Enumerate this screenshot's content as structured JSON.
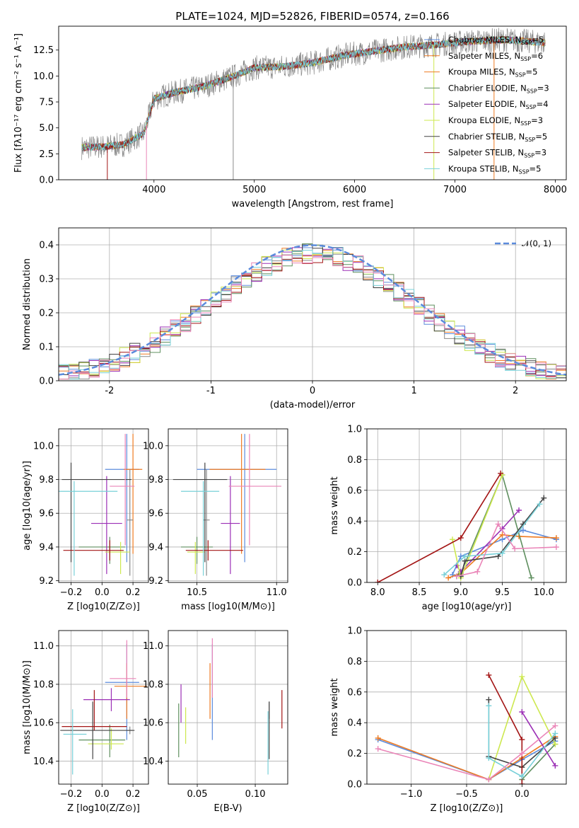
{
  "palette": [
    "#5b8bdc",
    "#ef7b22",
    "#8a8a8a",
    "#5f8f5f",
    "#9b2fb5",
    "#cde84f",
    "#444444",
    "#a31515",
    "#78d0d8",
    "#ea85b8"
  ],
  "chart_data": [
    {
      "id": "spectrum",
      "type": "line",
      "title": "PLATE=1024, MJD=52826, FIBERID=0574, z=0.166",
      "xlabel": "wavelength [Angstrom, rest frame]",
      "ylabel": "Flux [fλ10⁻¹⁷ erg cm⁻² s⁻¹ A⁻¹]",
      "xlim": [
        3050,
        8110
      ],
      "ylim": [
        0,
        14.8
      ],
      "xticks": [
        4000,
        5000,
        6000,
        7000,
        8000
      ],
      "yticks": [
        0.0,
        2.5,
        5.0,
        7.5,
        10.0,
        12.5
      ],
      "ytick_labels": [
        "0.0",
        "2.5",
        "5.0",
        "7.5",
        "10.0",
        "12.5"
      ],
      "grid": false,
      "legend_placement": "upper right",
      "continuum": [
        [
          3280,
          3.1
        ],
        [
          3500,
          3.2
        ],
        [
          3700,
          3.4
        ],
        [
          3900,
          4.5
        ],
        [
          4000,
          7.8
        ],
        [
          4200,
          8.4
        ],
        [
          4500,
          9.0
        ],
        [
          4800,
          10.0
        ],
        [
          5000,
          10.8
        ],
        [
          5300,
          10.9
        ],
        [
          5600,
          11.3
        ],
        [
          5900,
          12.0
        ],
        [
          6200,
          12.4
        ],
        [
          6500,
          12.8
        ],
        [
          6800,
          13.0
        ],
        [
          7100,
          13.3
        ],
        [
          7500,
          13.5
        ],
        [
          7900,
          13.2
        ]
      ],
      "vertical_spikes": [
        3535,
        3925,
        4790,
        6790,
        7390
      ],
      "series": [
        {
          "name": "Chabrier MILES, N_SSP=5"
        },
        {
          "name": "Salpeter MILES, N_SSP=6"
        },
        {
          "name": "Kroupa MILES, N_SSP=5"
        },
        {
          "name": "Chabrier ELODIE, N_SSP=3"
        },
        {
          "name": "Salpeter ELODIE, N_SSP=4"
        },
        {
          "name": "Kroupa ELODIE, N_SSP=3"
        },
        {
          "name": "Chabrier STELIB, N_SSP=5"
        },
        {
          "name": "Salpeter STELIB, N_SSP=3"
        },
        {
          "name": "Kroupa STELIB, N_SSP=5"
        }
      ]
    },
    {
      "id": "residuals",
      "type": "histogram",
      "xlabel": "(data-model)/error",
      "ylabel": "Normed distribution",
      "xlim": [
        -2.5,
        2.5
      ],
      "ylim": [
        0,
        0.45
      ],
      "xticks": [
        -2,
        -1,
        0,
        1,
        2
      ],
      "yticks": [
        0.0,
        0.1,
        0.2,
        0.3,
        0.4
      ],
      "ytick_labels": [
        "0.0",
        "0.1",
        "0.2",
        "0.3",
        "0.4"
      ],
      "grid": true,
      "bins": {
        "start": -2.5,
        "width": 0.1,
        "count": 50
      },
      "reference": {
        "name": "𝒩(0, 1)",
        "mean": 0,
        "sigma": 1
      },
      "legend_placement": "upper right"
    },
    {
      "id": "age-vs-Z",
      "type": "errorbar",
      "xlabel": "Z [log10(Z/Z⊙)]",
      "ylabel": "age [log10(age/yr)]",
      "xlim": [
        -0.28,
        0.3
      ],
      "ylim": [
        9.19,
        10.1
      ],
      "xticks": [
        -0.2,
        0.0,
        0.2
      ],
      "xtick_labels": [
        "−0.2",
        "0.0",
        "0.2"
      ],
      "yticks": [
        9.2,
        9.4,
        9.6,
        9.8,
        10.0
      ],
      "ytick_labels": [
        "9.2",
        "9.4",
        "9.6",
        "9.8",
        "10.0"
      ],
      "grid": true,
      "points": [
        {
          "x": 0.16,
          "xerr": [
            0.14,
            0.08
          ],
          "y": 9.86,
          "yerr": [
            0.55,
            0.21
          ],
          "c": 0
        },
        {
          "x": 0.2,
          "xerr": [
            0.06,
            0.06
          ],
          "y": 9.86,
          "yerr": [
            0.5,
            0.21
          ],
          "c": 1
        },
        {
          "x": 0.18,
          "xerr": [
            0.02,
            0.02
          ],
          "y": 9.56,
          "yerr": [
            0.33,
            0.3
          ],
          "c": 2
        },
        {
          "x": 0.05,
          "xerr": [
            0.2,
            0.1
          ],
          "y": 9.4,
          "yerr": [
            0.1,
            0.06
          ],
          "c": 3
        },
        {
          "x": 0.03,
          "xerr": [
            0.1,
            0.1
          ],
          "y": 9.54,
          "yerr": [
            0.3,
            0.28
          ],
          "c": 4
        },
        {
          "x": 0.12,
          "xerr": [
            0.1,
            0.06
          ],
          "y": 9.37,
          "yerr": [
            0.13,
            0.06
          ],
          "c": 5
        },
        {
          "x": -0.2,
          "xerr": [
            0.06,
            0.39
          ],
          "y": 9.8,
          "yerr": [
            0.49,
            0.1
          ],
          "c": 6
        },
        {
          "x": 0.05,
          "xerr": [
            0.3,
            0.09
          ],
          "y": 9.38,
          "yerr": [
            0.06,
            0.06
          ],
          "c": 7
        },
        {
          "x": -0.18,
          "xerr": [
            0.11,
            0.28
          ],
          "y": 9.73,
          "yerr": [
            0.5,
            0.06
          ],
          "c": 8
        },
        {
          "x": 0.15,
          "xerr": [
            0.1,
            0.06
          ],
          "y": 9.76,
          "yerr": [
            0.35,
            0.31
          ],
          "c": 9
        }
      ]
    },
    {
      "id": "age-vs-mass",
      "type": "errorbar",
      "xlabel": "mass [log10(M/M⊙)]",
      "ylabel": "",
      "xlim": [
        10.32,
        11.07
      ],
      "ylim": [
        9.19,
        10.1
      ],
      "xticks": [
        10.5,
        11.0
      ],
      "xtick_labels": [
        "10.5",
        "11.0"
      ],
      "yticks": [
        9.2,
        9.4,
        9.6,
        9.8,
        10.0
      ],
      "ytick_labels": [
        "9.2",
        "9.4",
        "9.6",
        "9.8",
        "10.0"
      ],
      "grid": true,
      "points": [
        {
          "x": 10.8,
          "xerr": [
            0.3,
            0.2
          ],
          "y": 9.86,
          "yerr": [
            0.55,
            0.21
          ],
          "c": 0
        },
        {
          "x": 10.78,
          "xerr": [
            0.2,
            0.15
          ],
          "y": 9.86,
          "yerr": [
            0.5,
            0.21
          ],
          "c": 1
        },
        {
          "x": 10.56,
          "xerr": [
            0.02,
            0.02
          ],
          "y": 9.56,
          "yerr": [
            0.33,
            0.3
          ],
          "c": 2
        },
        {
          "x": 10.5,
          "xerr": [
            0.1,
            0.1
          ],
          "y": 9.4,
          "yerr": [
            0.1,
            0.06
          ],
          "c": 3
        },
        {
          "x": 10.71,
          "xerr": [
            0.06,
            0.06
          ],
          "y": 9.54,
          "yerr": [
            0.3,
            0.28
          ],
          "c": 4
        },
        {
          "x": 10.49,
          "xerr": [
            0.05,
            0.06
          ],
          "y": 9.37,
          "yerr": [
            0.13,
            0.06
          ],
          "c": 5
        },
        {
          "x": 10.55,
          "xerr": [
            0.2,
            0.14
          ],
          "y": 9.8,
          "yerr": [
            0.49,
            0.1
          ],
          "c": 6
        },
        {
          "x": 10.57,
          "xerr": [
            0.14,
            0.22
          ],
          "y": 9.38,
          "yerr": [
            0.06,
            0.06
          ],
          "c": 7
        },
        {
          "x": 10.54,
          "xerr": [
            0.14,
            0.1
          ],
          "y": 9.73,
          "yerr": [
            0.5,
            0.06
          ],
          "c": 8
        },
        {
          "x": 10.83,
          "xerr": [
            0.13,
            0.2
          ],
          "y": 9.76,
          "yerr": [
            0.35,
            0.31
          ],
          "c": 9
        }
      ]
    },
    {
      "id": "mass-weight-vs-age",
      "type": "line",
      "xlabel": "age [log10(age/yr)]",
      "ylabel": "mass weight",
      "xlim": [
        7.87,
        10.27
      ],
      "ylim": [
        0,
        1.0
      ],
      "xticks": [
        8.0,
        8.5,
        9.0,
        9.5,
        10.0
      ],
      "xtick_labels": [
        "8.0",
        "8.5",
        "9.0",
        "9.5",
        "10.0"
      ],
      "yticks": [
        0.0,
        0.2,
        0.4,
        0.6,
        0.8,
        1.0
      ],
      "ytick_labels": [
        "0.0",
        "0.2",
        "0.4",
        "0.6",
        "0.8",
        "1.0"
      ],
      "grid": true,
      "series": [
        {
          "c": 0,
          "x": [
            8.9,
            9.0,
            9.5,
            9.75,
            10.15
          ],
          "y": [
            0.05,
            0.17,
            0.28,
            0.34,
            0.28
          ]
        },
        {
          "c": 1,
          "x": [
            8.85,
            9.0,
            9.5,
            9.7,
            10.15
          ],
          "y": [
            0.03,
            0.06,
            0.31,
            0.3,
            0.29
          ]
        },
        {
          "c": 3,
          "x": [
            8.95,
            9.0,
            9.5,
            9.85
          ],
          "y": [
            0.04,
            0.06,
            0.7,
            0.03
          ]
        },
        {
          "c": 4,
          "x": [
            8.95,
            9.0,
            9.5,
            9.7
          ],
          "y": [
            0.11,
            0.07,
            0.35,
            0.47
          ]
        },
        {
          "c": 5,
          "x": [
            8.9,
            9.0,
            9.5
          ],
          "y": [
            0.28,
            0.03,
            0.7
          ]
        },
        {
          "c": 6,
          "x": [
            9.0,
            9.05,
            9.45,
            9.75,
            10.0
          ],
          "y": [
            0.04,
            0.14,
            0.17,
            0.38,
            0.55
          ]
        },
        {
          "c": 7,
          "x": [
            8.0,
            9.0,
            9.48
          ],
          "y": [
            0.0,
            0.29,
            0.71
          ]
        },
        {
          "c": 8,
          "x": [
            8.8,
            9.05,
            9.5,
            9.95
          ],
          "y": [
            0.05,
            0.17,
            0.19,
            0.51
          ]
        },
        {
          "c": 9,
          "x": [
            8.95,
            9.2,
            9.45,
            9.65,
            10.15
          ],
          "y": [
            0.04,
            0.07,
            0.38,
            0.22,
            0.23
          ]
        }
      ]
    },
    {
      "id": "mass-vs-Z",
      "type": "errorbar",
      "xlabel": "Z [log10(Z/Z⊙)]",
      "ylabel": "mass [log10(M/M⊙)]",
      "xlim": [
        -0.28,
        0.3
      ],
      "ylim": [
        10.28,
        11.08
      ],
      "xticks": [
        -0.2,
        0.0,
        0.2
      ],
      "xtick_labels": [
        "−0.2",
        "0.0",
        "0.2"
      ],
      "yticks": [
        10.4,
        10.6,
        10.8,
        11.0
      ],
      "ytick_labels": [
        "10.4",
        "10.6",
        "10.8",
        "11.0"
      ],
      "grid": true,
      "points": [
        {
          "x": 0.16,
          "xerr": [
            0.14,
            0.08
          ],
          "y": 10.81,
          "yerr": [
            0.3,
            0.2
          ],
          "c": 0
        },
        {
          "x": 0.16,
          "xerr": [
            0.08,
            0.13
          ],
          "y": 10.79,
          "yerr": [
            0.17,
            0.12
          ],
          "c": 1
        },
        {
          "x": 0.18,
          "xerr": [
            0.02,
            0.02
          ],
          "y": 10.56,
          "yerr": [
            0.02,
            0.02
          ],
          "c": 2
        },
        {
          "x": 0.05,
          "xerr": [
            0.2,
            0.1
          ],
          "y": 10.51,
          "yerr": [
            0.09,
            0.08
          ],
          "c": 3
        },
        {
          "x": 0.06,
          "xerr": [
            0.18,
            0.12
          ],
          "y": 10.72,
          "yerr": [
            0.06,
            0.06
          ],
          "c": 4
        },
        {
          "x": 0.06,
          "xerr": [
            0.15,
            0.08
          ],
          "y": 10.49,
          "yerr": [
            0.03,
            0.08
          ],
          "c": 5
        },
        {
          "x": -0.06,
          "xerr": [
            0.21,
            0.27
          ],
          "y": 10.56,
          "yerr": [
            0.15,
            0.15
          ],
          "c": 6
        },
        {
          "x": -0.05,
          "xerr": [
            0.21,
            0.21
          ],
          "y": 10.58,
          "yerr": [
            0.02,
            0.19
          ],
          "c": 7
        },
        {
          "x": -0.19,
          "xerr": [
            0.06,
            0.09
          ],
          "y": 10.54,
          "yerr": [
            0.21,
            0.13
          ],
          "c": 8
        },
        {
          "x": 0.16,
          "xerr": [
            0.11,
            0.06
          ],
          "y": 10.83,
          "yerr": [
            0.1,
            0.2
          ],
          "c": 9
        }
      ]
    },
    {
      "id": "mass-vs-EBV",
      "type": "errorbar",
      "xlabel": "E(B-V)",
      "ylabel": "",
      "xlim": [
        0.025,
        0.128
      ],
      "ylim": [
        10.28,
        11.08
      ],
      "xticks": [
        0.05,
        0.1
      ],
      "xtick_labels": [
        "0.05",
        "0.10"
      ],
      "yticks": [
        10.4,
        10.6,
        10.8,
        11.0
      ],
      "ytick_labels": [
        "10.4",
        "10.6",
        "10.8",
        "11.0"
      ],
      "grid": true,
      "points": [
        {
          "x": 0.063,
          "y": 10.81,
          "yerr": [
            0.3,
            0.2
          ],
          "c": 0
        },
        {
          "x": 0.061,
          "y": 10.79,
          "yerr": [
            0.17,
            0.12
          ],
          "c": 1
        },
        {
          "x": 0.112,
          "y": 10.66,
          "yerr": [
            0.04,
            0.05
          ],
          "c": 2
        },
        {
          "x": 0.034,
          "y": 10.56,
          "yerr": [
            0.14,
            0.14
          ],
          "c": 3
        },
        {
          "x": 0.036,
          "y": 10.7,
          "yerr": [
            0.1,
            0.1
          ],
          "c": 4
        },
        {
          "x": 0.04,
          "y": 10.59,
          "yerr": [
            0.1,
            0.09
          ],
          "c": 5
        },
        {
          "x": 0.112,
          "y": 10.56,
          "yerr": [
            0.15,
            0.15
          ],
          "c": 6
        },
        {
          "x": 0.123,
          "y": 10.61,
          "yerr": [
            0.04,
            0.16
          ],
          "c": 7
        },
        {
          "x": 0.111,
          "y": 10.52,
          "yerr": [
            0.19,
            0.14
          ],
          "c": 8
        },
        {
          "x": 0.063,
          "y": 10.85,
          "yerr": [
            0.12,
            0.19
          ],
          "c": 9
        }
      ]
    },
    {
      "id": "mass-weight-vs-Z",
      "type": "line",
      "xlabel": "Z [log10(Z/Z⊙)]",
      "ylabel": "mass weight",
      "xlim": [
        -1.4,
        0.4
      ],
      "ylim": [
        0,
        1.0
      ],
      "xticks": [
        -1.0,
        -0.5,
        0.0
      ],
      "xtick_labels": [
        "−1.0",
        "−0.5",
        "0.0"
      ],
      "yticks": [
        0.0,
        0.2,
        0.4,
        0.6,
        0.8,
        1.0
      ],
      "ytick_labels": [
        "0.0",
        "0.2",
        "0.4",
        "0.6",
        "0.8",
        "1.0"
      ],
      "grid": true,
      "series": [
        {
          "c": 0,
          "x": [
            -1.3,
            -0.3,
            0.0,
            0.3
          ],
          "y": [
            0.29,
            0.03,
            0.16,
            0.28
          ]
        },
        {
          "c": 1,
          "x": [
            -1.3,
            -0.3,
            0.0,
            0.3
          ],
          "y": [
            0.3,
            0.03,
            0.17,
            0.31
          ]
        },
        {
          "c": 3,
          "x": [
            0.0,
            0.3
          ],
          "y": [
            0.03,
            0.26
          ]
        },
        {
          "c": 4,
          "x": [
            0.0,
            0.3
          ],
          "y": [
            0.47,
            0.12
          ]
        },
        {
          "c": 5,
          "x": [
            -0.3,
            0.0,
            0.3
          ],
          "y": [
            0.03,
            0.7,
            0.26
          ]
        },
        {
          "c": 6,
          "x": [
            -0.3,
            -0.3,
            0.0,
            0.3
          ],
          "y": [
            0.55,
            0.18,
            0.11,
            0.3
          ]
        },
        {
          "c": 7,
          "x": [
            -0.3,
            0.0,
            0.0
          ],
          "y": [
            0.71,
            0.29,
            0.0
          ]
        },
        {
          "c": 8,
          "x": [
            -0.3,
            -0.3,
            0.0,
            0.3
          ],
          "y": [
            0.51,
            0.17,
            0.05,
            0.33
          ]
        },
        {
          "c": 9,
          "x": [
            -1.3,
            -0.3,
            0.0,
            0.3
          ],
          "y": [
            0.23,
            0.03,
            0.2,
            0.38
          ]
        }
      ]
    }
  ]
}
